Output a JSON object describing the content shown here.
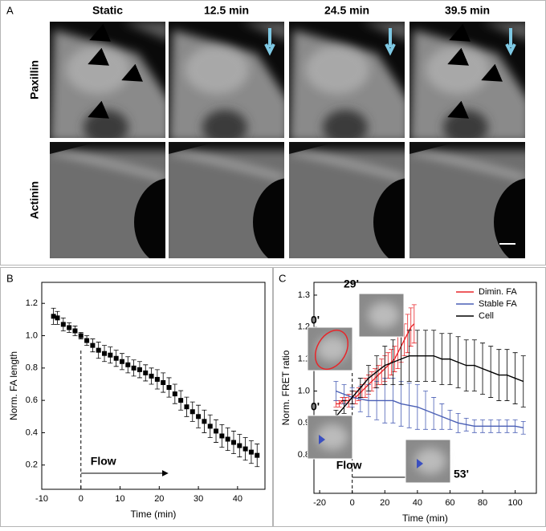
{
  "panel_a": {
    "label": "A",
    "columns": [
      "Static",
      "12.5 min",
      "24.5 min",
      "39.5 min"
    ],
    "rows": [
      "Paxillin",
      "Actinin"
    ]
  },
  "chart_data": [
    {
      "type": "scatter",
      "panel_label": "B",
      "xlabel": "Time (min)",
      "ylabel": "Norm. FA length",
      "flow_label": "Flow",
      "flow_start": 0,
      "color": "#000000",
      "x": [
        -7,
        -6,
        -4.5,
        -3,
        -1.5,
        0,
        1.5,
        3,
        4.5,
        6,
        7.5,
        9,
        10.5,
        12,
        13.5,
        15,
        16.5,
        18,
        19.5,
        21,
        22.5,
        24,
        25.5,
        27,
        28.5,
        30,
        31.5,
        33,
        34.5,
        36,
        37.5,
        39,
        40.5,
        42,
        43.5,
        45
      ],
      "values": [
        1.12,
        1.11,
        1.07,
        1.05,
        1.03,
        1.0,
        0.97,
        0.94,
        0.91,
        0.89,
        0.88,
        0.86,
        0.84,
        0.82,
        0.8,
        0.79,
        0.77,
        0.75,
        0.73,
        0.71,
        0.68,
        0.64,
        0.6,
        0.56,
        0.53,
        0.5,
        0.47,
        0.44,
        0.41,
        0.38,
        0.36,
        0.34,
        0.32,
        0.3,
        0.28,
        0.26
      ],
      "errors": [
        0.05,
        0.04,
        0.04,
        0.03,
        0.03,
        0.02,
        0.03,
        0.04,
        0.05,
        0.05,
        0.05,
        0.05,
        0.05,
        0.05,
        0.05,
        0.05,
        0.05,
        0.05,
        0.06,
        0.06,
        0.06,
        0.06,
        0.06,
        0.06,
        0.06,
        0.07,
        0.07,
        0.07,
        0.07,
        0.07,
        0.07,
        0.07,
        0.07,
        0.07,
        0.07,
        0.07
      ],
      "xlim": [
        -10,
        47
      ],
      "ylim": [
        0.05,
        1.33
      ],
      "xticks": [
        -10,
        0,
        10,
        20,
        30,
        40
      ],
      "yticks": [
        0.2,
        0.4,
        0.6,
        0.8,
        {
          "value": 1,
          "label": "1.0"
        },
        1.2
      ]
    },
    {
      "type": "line",
      "panel_label": "C",
      "xlabel": "Time (min)",
      "ylabel": "Norm. FRET ratio",
      "flow_label": "Flow",
      "flow_start": 0,
      "inset_labels": [
        "29'",
        "0'",
        "0'",
        "53'"
      ],
      "xlim": [
        -23.5,
        113
      ],
      "ylim": [
        0.68,
        1.34
      ],
      "xticks": [
        -20,
        0,
        20,
        40,
        60,
        80,
        100
      ],
      "yticks": [
        0.8,
        0.9,
        {
          "value": 1,
          "label": "1.0"
        },
        1.1,
        1.2,
        1.3
      ],
      "series": [
        {
          "name": "Dimin. FA",
          "color": "#e8262a",
          "x": [
            -10,
            -8,
            -6,
            -4,
            -2,
            0,
            2,
            4,
            6,
            8,
            10,
            12,
            14,
            16,
            18,
            20,
            22,
            24,
            26,
            28,
            30,
            32,
            34,
            36,
            38
          ],
          "values": [
            0.96,
            0.96,
            0.97,
            0.97,
            0.97,
            0.98,
            0.98,
            0.99,
            1.0,
            1.01,
            1.02,
            1.03,
            1.04,
            1.05,
            1.06,
            1.07,
            1.08,
            1.09,
            1.1,
            1.12,
            1.14,
            1.16,
            1.18,
            1.2,
            1.21
          ],
          "errors": [
            0.01,
            0.01,
            0.01,
            0.01,
            0.02,
            0.02,
            0.02,
            0.02,
            0.02,
            0.03,
            0.03,
            0.03,
            0.03,
            0.03,
            0.04,
            0.04,
            0.04,
            0.04,
            0.04,
            0.05,
            0.05,
            0.05,
            0.06,
            0.06,
            0.06
          ]
        },
        {
          "name": "Stable FA",
          "color": "#4a5fb5",
          "x": [
            -10,
            -5,
            0,
            5,
            10,
            15,
            20,
            25,
            30,
            35,
            40,
            45,
            50,
            55,
            60,
            65,
            70,
            75,
            80,
            85,
            90,
            95,
            100,
            105
          ],
          "values": [
            1.0,
            0.99,
            0.98,
            0.975,
            0.97,
            0.97,
            0.97,
            0.97,
            0.96,
            0.955,
            0.95,
            0.94,
            0.93,
            0.92,
            0.91,
            0.9,
            0.895,
            0.89,
            0.89,
            0.89,
            0.89,
            0.89,
            0.89,
            0.885
          ],
          "errors": [
            0.03,
            0.03,
            0.03,
            0.04,
            0.05,
            0.06,
            0.07,
            0.07,
            0.07,
            0.07,
            0.07,
            0.06,
            0.05,
            0.04,
            0.03,
            0.03,
            0.02,
            0.02,
            0.02,
            0.02,
            0.02,
            0.02,
            0.02,
            0.02
          ]
        },
        {
          "name": "Cell",
          "color": "#000000",
          "x": [
            -10,
            -5,
            0,
            5,
            10,
            15,
            20,
            25,
            30,
            35,
            40,
            45,
            50,
            55,
            60,
            65,
            70,
            75,
            80,
            85,
            90,
            95,
            100,
            105
          ],
          "values": [
            0.92,
            0.95,
            0.98,
            1.01,
            1.04,
            1.06,
            1.08,
            1.09,
            1.1,
            1.11,
            1.11,
            1.11,
            1.11,
            1.1,
            1.1,
            1.09,
            1.08,
            1.08,
            1.07,
            1.06,
            1.05,
            1.05,
            1.04,
            1.03
          ],
          "errors": [
            0.02,
            0.02,
            0.02,
            0.03,
            0.04,
            0.05,
            0.06,
            0.07,
            0.08,
            0.08,
            0.08,
            0.08,
            0.08,
            0.08,
            0.08,
            0.08,
            0.08,
            0.08,
            0.08,
            0.08,
            0.08,
            0.08,
            0.08,
            0.08
          ]
        }
      ]
    }
  ]
}
